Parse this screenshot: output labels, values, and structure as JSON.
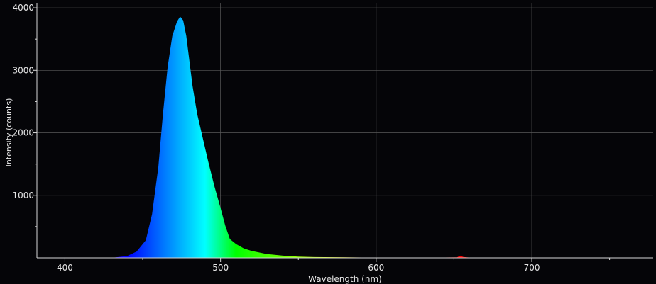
{
  "chart_data": {
    "type": "area",
    "title": "",
    "xlabel": "Wavelength (nm)",
    "ylabel": "Intensity (counts)",
    "xlim": [
      382,
      778
    ],
    "ylim": [
      0,
      4080
    ],
    "x_ticks": [
      400,
      500,
      600,
      700
    ],
    "x_tick_labels": [
      "400",
      "500",
      "600",
      "700"
    ],
    "y_ticks": [
      1000,
      2000,
      3000,
      4000
    ],
    "y_tick_labels": [
      "1000",
      "2000",
      "3000",
      "4000"
    ],
    "grid": true,
    "legend": "none",
    "colors": {
      "background": "#050508",
      "grid": "#5a5a5a",
      "axis": "#d8d8d8",
      "text": "#e6e6e6"
    },
    "fill": "wavelength-colored",
    "series": [
      {
        "x": [
          430,
          440,
          446,
          452,
          456,
          460,
          463,
          466,
          469,
          472,
          474,
          476,
          478,
          480,
          482,
          485,
          488,
          492,
          496,
          500,
          503,
          506,
          510,
          515,
          520,
          530,
          540,
          550,
          560,
          580,
          600,
          640,
          652,
          654,
          656,
          660,
          700,
          778
        ],
        "y": [
          0,
          30,
          100,
          280,
          700,
          1450,
          2300,
          3050,
          3550,
          3780,
          3860,
          3800,
          3550,
          3150,
          2750,
          2300,
          1980,
          1550,
          1150,
          800,
          520,
          300,
          220,
          150,
          110,
          60,
          35,
          20,
          12,
          8,
          5,
          4,
          8,
          35,
          15,
          4,
          3,
          2
        ]
      }
    ]
  }
}
